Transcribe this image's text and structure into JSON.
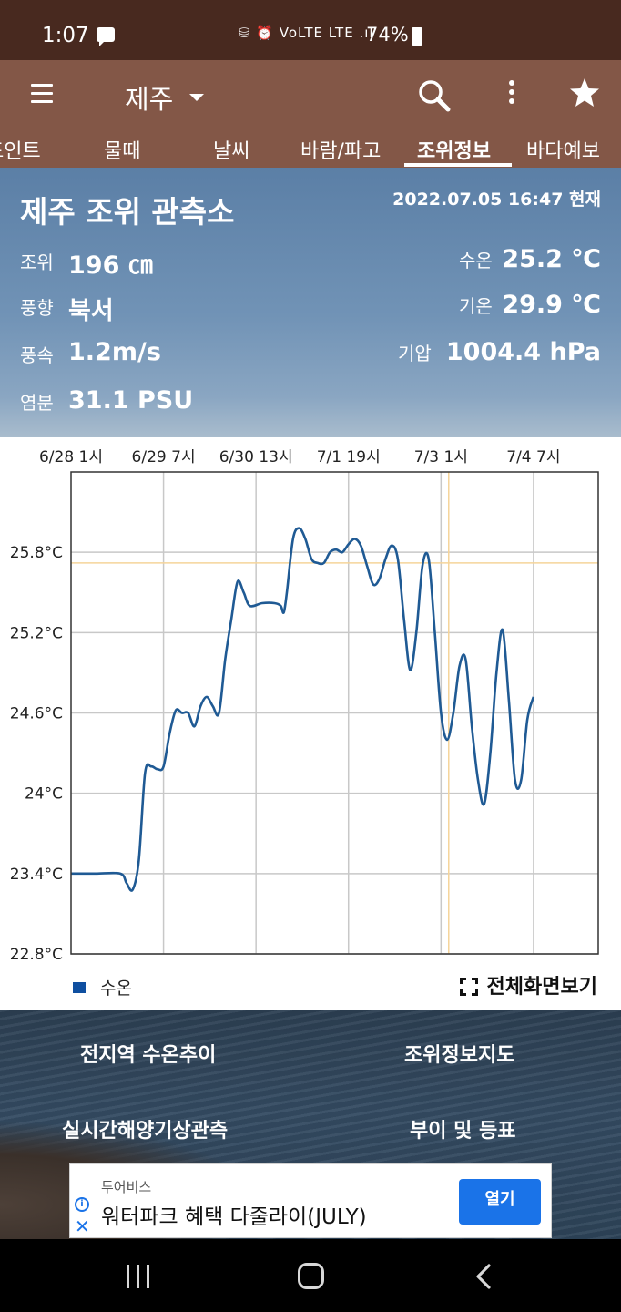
{
  "status_bar": {
    "time": "1:07",
    "icons": "⛁ ⏰ VoLTE LTE .ıl",
    "battery": "74%"
  },
  "app_bar": {
    "title": "제주"
  },
  "tabs": [
    {
      "label": "포인트"
    },
    {
      "label": "물때"
    },
    {
      "label": "날씨"
    },
    {
      "label": "바람/파고"
    },
    {
      "label": "조위정보",
      "active": true
    },
    {
      "label": "바다예보"
    }
  ],
  "station": {
    "name": "제주 조위 관측소",
    "datetime": "2022.07.05 16:47 현재",
    "tide_label": "조위",
    "tide_value": "196 ㎝",
    "water_temp_label": "수온",
    "water_temp_value": "25.2 ℃",
    "wind_dir_label": "풍향",
    "wind_dir_value": "북서",
    "air_temp_label": "기온",
    "air_temp_value": "29.9 ℃",
    "wind_speed_label": "풍속",
    "wind_speed_value": "1.2m/s",
    "pressure_label": "기압",
    "pressure_value": "1004.4 hPa",
    "salinity_label": "염분",
    "salinity_value": "31.1 PSU"
  },
  "chart_data": {
    "type": "line",
    "x_tick_labels": [
      "6/28 1시",
      "6/29 7시",
      "6/30 13시",
      "7/1 19시",
      "7/3 1시",
      "7/4 7시"
    ],
    "x_ticks_hours": [
      0,
      30,
      60,
      90,
      120,
      150
    ],
    "y_tick_labels": [
      "25.8°C",
      "25.2°C",
      "24.6°C",
      "24°C",
      "23.4°C",
      "22.8°C"
    ],
    "ylim": [
      22.8,
      26.4
    ],
    "xlim_hours": [
      0,
      171
    ],
    "grid": true,
    "current_marker": {
      "x_hours": 122.5,
      "y": 25.72
    },
    "series": [
      {
        "name": "수온",
        "color": "#1f5a94",
        "points": [
          [
            0,
            23.4
          ],
          [
            8,
            23.4
          ],
          [
            16,
            23.4
          ],
          [
            18,
            23.33
          ],
          [
            20,
            23.28
          ],
          [
            22,
            23.5
          ],
          [
            24,
            24.15
          ],
          [
            26,
            24.2
          ],
          [
            28,
            24.18
          ],
          [
            30,
            24.2
          ],
          [
            32,
            24.45
          ],
          [
            34,
            24.62
          ],
          [
            36,
            24.6
          ],
          [
            38,
            24.6
          ],
          [
            40,
            24.5
          ],
          [
            42,
            24.65
          ],
          [
            44,
            24.72
          ],
          [
            46,
            24.65
          ],
          [
            48,
            24.6
          ],
          [
            50,
            25.0
          ],
          [
            52,
            25.3
          ],
          [
            54,
            25.58
          ],
          [
            56,
            25.5
          ],
          [
            58,
            25.4
          ],
          [
            62,
            25.42
          ],
          [
            66,
            25.42
          ],
          [
            68,
            25.4
          ],
          [
            69,
            25.35
          ],
          [
            70,
            25.5
          ],
          [
            72,
            25.9
          ],
          [
            74,
            25.98
          ],
          [
            76,
            25.9
          ],
          [
            78,
            25.75
          ],
          [
            80,
            25.72
          ],
          [
            82,
            25.72
          ],
          [
            84,
            25.8
          ],
          [
            86,
            25.82
          ],
          [
            88,
            25.8
          ],
          [
            90,
            25.86
          ],
          [
            92,
            25.9
          ],
          [
            94,
            25.85
          ],
          [
            96,
            25.7
          ],
          [
            98,
            25.56
          ],
          [
            100,
            25.6
          ],
          [
            102,
            25.75
          ],
          [
            104,
            25.85
          ],
          [
            106,
            25.75
          ],
          [
            108,
            25.3
          ],
          [
            110,
            24.92
          ],
          [
            112,
            25.2
          ],
          [
            114,
            25.7
          ],
          [
            116,
            25.75
          ],
          [
            118,
            25.2
          ],
          [
            120,
            24.6
          ],
          [
            122,
            24.4
          ],
          [
            124,
            24.6
          ],
          [
            126,
            24.95
          ],
          [
            128,
            25.0
          ],
          [
            130,
            24.5
          ],
          [
            132,
            24.1
          ],
          [
            134,
            23.92
          ],
          [
            136,
            24.3
          ],
          [
            138,
            24.9
          ],
          [
            140,
            25.22
          ],
          [
            142,
            24.7
          ],
          [
            144,
            24.1
          ],
          [
            146,
            24.1
          ],
          [
            148,
            24.55
          ],
          [
            150,
            24.72
          ]
        ]
      }
    ]
  },
  "legend": {
    "label": "수온"
  },
  "fullscreen": {
    "label": "전체화면보기"
  },
  "links": [
    {
      "label": "전지역 수온추이"
    },
    {
      "label": "조위정보지도"
    },
    {
      "label": "실시간해양기상관측"
    },
    {
      "label": "부이 및 등표"
    }
  ],
  "ad": {
    "sponsor": "투어비스",
    "title": "워터파크 혜택 다줄라이(JULY)",
    "button": "열기"
  },
  "colors": {
    "status_bar": "#48291f",
    "app_bar": "#835747",
    "chart_line": "#1f5a94",
    "marker": "#f5d49a",
    "ad_button": "#1a73e8"
  }
}
